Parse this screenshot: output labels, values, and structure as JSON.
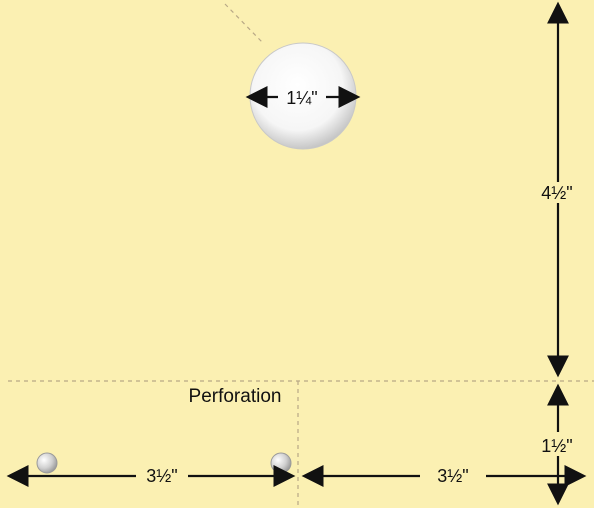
{
  "labels": {
    "hole_diameter": "1¼\"",
    "upper_height": "4½\"",
    "lower_height": "1½\"",
    "left_width": "3½\"",
    "right_width": "3½\"",
    "perforation": "Perforation"
  },
  "colors": {
    "paper": "#fbf0b2",
    "dashed_line": "#b8a886",
    "arrow": "#111111",
    "hole_fill": "#ffffff",
    "hole_shadow": "#a8a8a8"
  }
}
